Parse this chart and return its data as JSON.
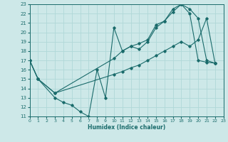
{
  "xlabel": "Humidex (Indice chaleur)",
  "xlim": [
    0,
    23
  ],
  "ylim": [
    11,
    23
  ],
  "xticks": [
    0,
    1,
    2,
    3,
    4,
    5,
    6,
    7,
    8,
    9,
    10,
    11,
    12,
    13,
    14,
    15,
    16,
    17,
    18,
    19,
    20,
    21,
    22,
    23
  ],
  "yticks": [
    11,
    12,
    13,
    14,
    15,
    16,
    17,
    18,
    19,
    20,
    21,
    22,
    23
  ],
  "bg_color": "#cde8e8",
  "grid_color": "#b0d8d8",
  "line_color": "#1a6b6b",
  "lines": [
    {
      "x": [
        0,
        1,
        3,
        4,
        5,
        6,
        7,
        8,
        9,
        10,
        11,
        12,
        13,
        14,
        15,
        16,
        17,
        18,
        19,
        20,
        21,
        22
      ],
      "y": [
        17,
        15,
        13,
        12.5,
        12.2,
        11.5,
        11,
        16,
        13,
        20.5,
        18,
        18.5,
        18.2,
        19,
        20.5,
        21.2,
        22.5,
        23,
        22,
        17,
        16.8,
        16.7
      ]
    },
    {
      "x": [
        0,
        1,
        3,
        10,
        11,
        12,
        13,
        14,
        15,
        16,
        17,
        18,
        19,
        20,
        21,
        22
      ],
      "y": [
        17,
        15,
        13.5,
        17.2,
        18,
        18.5,
        18.8,
        19.2,
        20.8,
        21.2,
        22.2,
        23,
        22.5,
        21.5,
        17,
        16.7
      ]
    },
    {
      "x": [
        0,
        1,
        3,
        10,
        11,
        12,
        13,
        14,
        15,
        16,
        17,
        18,
        19,
        20,
        21,
        22
      ],
      "y": [
        17,
        15,
        13.5,
        15.5,
        15.8,
        16.2,
        16.5,
        17,
        17.5,
        18,
        18.5,
        19,
        18.5,
        19.2,
        21.5,
        16.7
      ]
    }
  ]
}
